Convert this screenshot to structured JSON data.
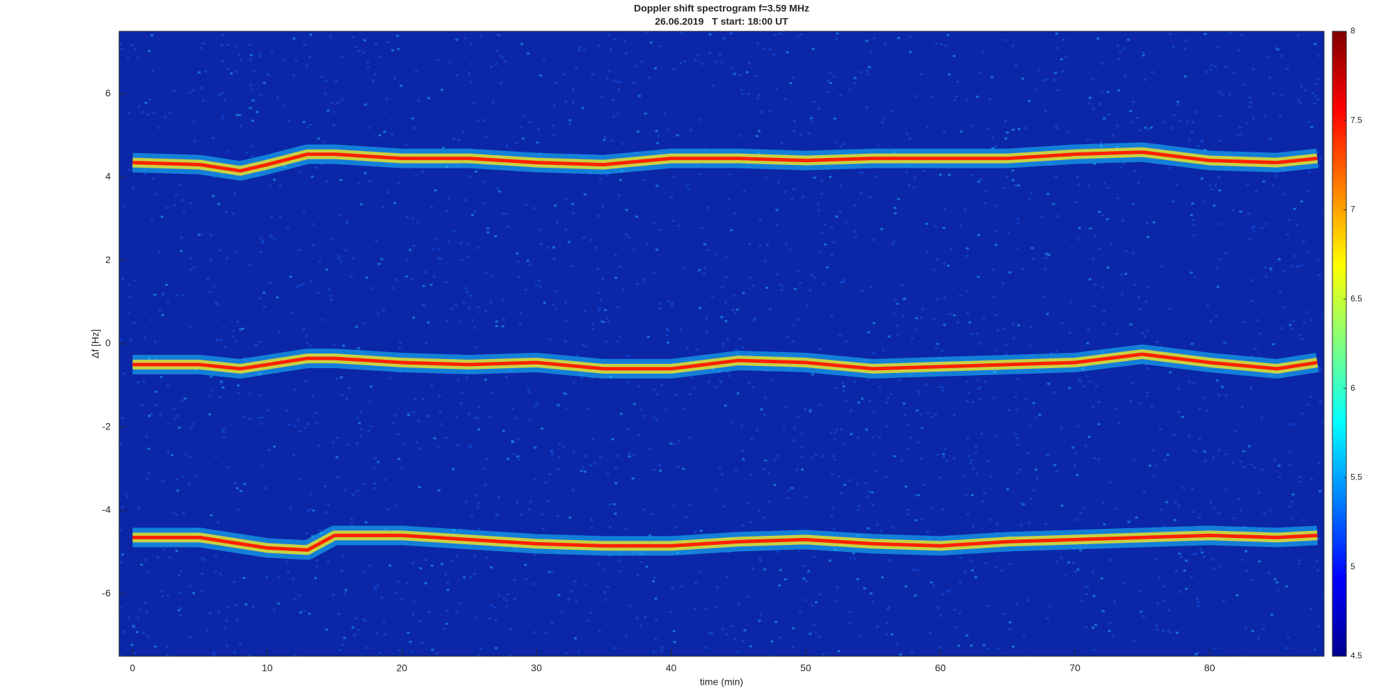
{
  "chart_data": {
    "type": "line",
    "title": "Doppler shift spectrogram f=3.59 MHz",
    "subtitle": "26.06.2019   T start: 18:00 UT",
    "x_label": "time (min)",
    "y_label": "Δf [Hz]",
    "x": [
      0,
      5,
      8,
      10,
      13,
      15,
      20,
      25,
      30,
      35,
      40,
      45,
      50,
      55,
      60,
      65,
      70,
      75,
      80,
      85,
      88
    ],
    "series": [
      {
        "color": "#ff2000",
        "values": [
          4.35,
          4.3,
          4.15,
          4.3,
          4.55,
          4.55,
          4.45,
          4.45,
          4.35,
          4.3,
          4.45,
          4.45,
          4.4,
          4.45,
          4.45,
          4.45,
          4.55,
          4.6,
          4.4,
          4.35,
          4.45
        ]
      },
      {
        "color": "#ff2000",
        "values": [
          -0.5,
          -0.5,
          -0.6,
          -0.5,
          -0.35,
          -0.35,
          -0.45,
          -0.5,
          -0.45,
          -0.6,
          -0.6,
          -0.4,
          -0.45,
          -0.6,
          -0.55,
          -0.5,
          -0.45,
          -0.25,
          -0.45,
          -0.6,
          -0.45
        ]
      },
      {
        "color": "#ff2000",
        "values": [
          -4.65,
          -4.65,
          -4.8,
          -4.9,
          -4.95,
          -4.6,
          -4.6,
          -4.7,
          -4.8,
          -4.85,
          -4.85,
          -4.75,
          -4.7,
          -4.8,
          -4.85,
          -4.75,
          -4.7,
          -4.65,
          -4.6,
          -4.65,
          -4.6
        ]
      }
    ],
    "xlim": [
      -1,
      88.5
    ],
    "xticks": [
      0,
      10,
      20,
      30,
      40,
      50,
      60,
      70,
      80
    ],
    "ylim": [
      -7.5,
      7.5
    ],
    "yticks": [
      -6,
      -4,
      -2,
      0,
      2,
      4,
      6
    ],
    "clim": [
      4.5,
      8
    ],
    "cticks": [
      4.5,
      5,
      5.5,
      6,
      6.5,
      7,
      7.5,
      8
    ],
    "background": "#0b27a8"
  }
}
